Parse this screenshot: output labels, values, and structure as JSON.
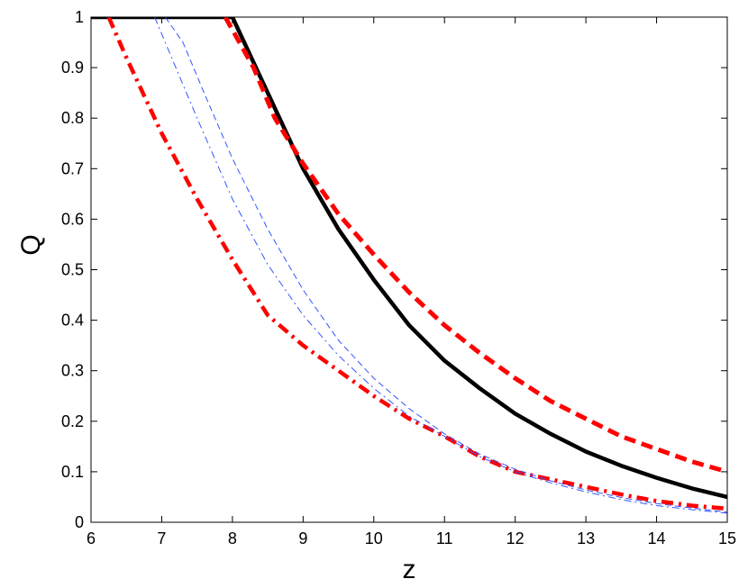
{
  "chart_data": {
    "type": "line",
    "xlabel": "z",
    "ylabel": "Q",
    "xlim": [
      6,
      15
    ],
    "ylim": [
      0,
      1
    ],
    "xticks": [
      "6",
      "7",
      "8",
      "9",
      "10",
      "11",
      "12",
      "13",
      "14",
      "15"
    ],
    "yticks": [
      "0",
      "0.1",
      "0.2",
      "0.3",
      "0.4",
      "0.5",
      "0.6",
      "0.7",
      "0.8",
      "0.9",
      "1"
    ],
    "grid": false,
    "legend": "none",
    "series": [
      {
        "style": "solid-thick",
        "color": "#000000",
        "points": [
          [
            6.0,
            1.0
          ],
          [
            7.0,
            1.0
          ],
          [
            8.0,
            1.0
          ],
          [
            8.5,
            0.85
          ],
          [
            9.0,
            0.7
          ],
          [
            9.5,
            0.58
          ],
          [
            10.0,
            0.48
          ],
          [
            10.5,
            0.39
          ],
          [
            11.0,
            0.32
          ],
          [
            11.5,
            0.265
          ],
          [
            12.0,
            0.215
          ],
          [
            12.5,
            0.175
          ],
          [
            13.0,
            0.14
          ],
          [
            13.5,
            0.112
          ],
          [
            14.0,
            0.088
          ],
          [
            14.5,
            0.067
          ],
          [
            15.0,
            0.05
          ]
        ]
      },
      {
        "style": "dashed-thick",
        "color": "#ff0000",
        "points": [
          [
            7.9,
            1.0
          ],
          [
            8.3,
            0.9
          ],
          [
            8.6,
            0.8
          ],
          [
            9.0,
            0.71
          ],
          [
            9.5,
            0.61
          ],
          [
            10.0,
            0.53
          ],
          [
            10.5,
            0.455
          ],
          [
            11.0,
            0.39
          ],
          [
            11.5,
            0.335
          ],
          [
            12.0,
            0.285
          ],
          [
            12.5,
            0.24
          ],
          [
            13.0,
            0.205
          ],
          [
            13.5,
            0.17
          ],
          [
            14.0,
            0.145
          ],
          [
            14.5,
            0.12
          ],
          [
            15.0,
            0.1
          ]
        ]
      },
      {
        "style": "dashdot-thick",
        "color": "#ff0000",
        "points": [
          [
            6.25,
            1.0
          ],
          [
            6.5,
            0.92
          ],
          [
            7.0,
            0.77
          ],
          [
            7.5,
            0.64
          ],
          [
            8.0,
            0.52
          ],
          [
            8.5,
            0.41
          ],
          [
            9.0,
            0.35
          ],
          [
            9.5,
            0.3
          ],
          [
            10.0,
            0.25
          ],
          [
            10.5,
            0.205
          ],
          [
            11.0,
            0.17
          ],
          [
            11.5,
            0.13
          ],
          [
            12.0,
            0.1
          ],
          [
            12.5,
            0.085
          ],
          [
            13.0,
            0.07
          ],
          [
            13.5,
            0.055
          ],
          [
            14.0,
            0.042
          ],
          [
            14.5,
            0.033
          ],
          [
            15.0,
            0.027
          ]
        ]
      },
      {
        "style": "dashdot-thin",
        "color": "#3355ff",
        "points": [
          [
            6.9,
            1.0
          ],
          [
            7.2,
            0.9
          ],
          [
            7.5,
            0.8
          ],
          [
            8.0,
            0.64
          ],
          [
            8.5,
            0.51
          ],
          [
            9.0,
            0.41
          ],
          [
            9.5,
            0.33
          ],
          [
            10.0,
            0.265
          ],
          [
            10.5,
            0.21
          ],
          [
            11.0,
            0.17
          ],
          [
            11.5,
            0.13
          ],
          [
            12.0,
            0.1
          ],
          [
            12.5,
            0.078
          ],
          [
            13.0,
            0.06
          ],
          [
            13.5,
            0.045
          ],
          [
            14.0,
            0.033
          ],
          [
            14.5,
            0.025
          ],
          [
            15.0,
            0.018
          ]
        ]
      },
      {
        "style": "dashed-thin",
        "color": "#3355ff",
        "points": [
          [
            7.05,
            1.0
          ],
          [
            7.3,
            0.95
          ],
          [
            7.6,
            0.85
          ],
          [
            8.0,
            0.72
          ],
          [
            8.5,
            0.58
          ],
          [
            9.0,
            0.46
          ],
          [
            9.5,
            0.36
          ],
          [
            10.0,
            0.285
          ],
          [
            10.5,
            0.225
          ],
          [
            11.0,
            0.175
          ],
          [
            11.5,
            0.135
          ],
          [
            12.0,
            0.105
          ],
          [
            12.5,
            0.082
          ],
          [
            13.0,
            0.064
          ],
          [
            13.5,
            0.049
          ],
          [
            14.0,
            0.037
          ],
          [
            14.5,
            0.028
          ],
          [
            15.0,
            0.02
          ]
        ]
      }
    ]
  }
}
